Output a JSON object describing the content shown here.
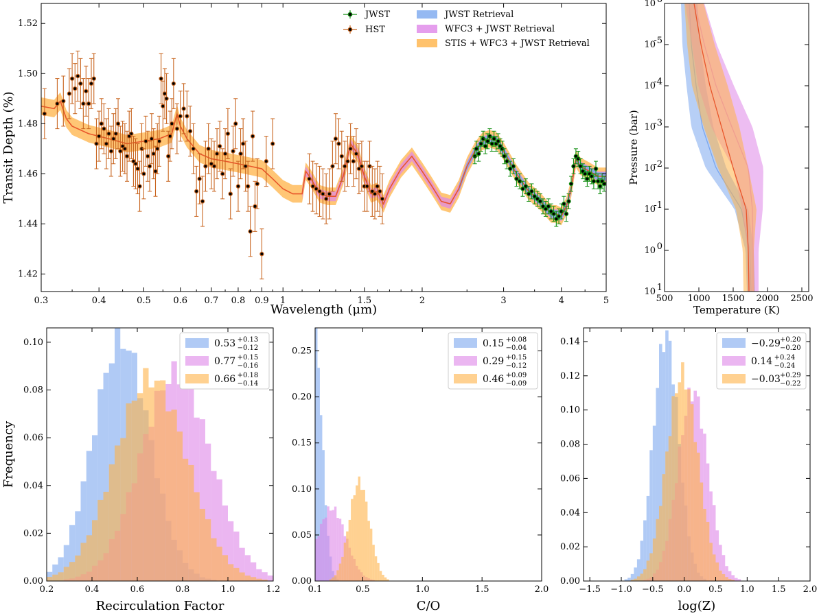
{
  "colors": {
    "jwst_ret": "#7ba7ef",
    "wfc3_ret": "#de86e8",
    "stis_ret": "#ffb347",
    "model_line": "#e8552a",
    "jwst_pts": "#138f13",
    "hst_pts": "#c8641e"
  },
  "chart_data": [
    {
      "type": "line",
      "name": "spectrum",
      "xlabel": "Wavelength (μm)",
      "ylabel": "Transit Depth (%)",
      "xscale": "log",
      "xlim": [
        0.3,
        5.0
      ],
      "ylim": [
        1.413,
        1.528
      ],
      "xticks": [
        0.3,
        0.4,
        0.5,
        0.6,
        0.7,
        0.8,
        0.9,
        1,
        1.5,
        2,
        3,
        4,
        5
      ],
      "xtick_labels": [
        "0.3",
        "0.4",
        "0.5",
        "0.6",
        "0.7",
        "0.8",
        "0.9",
        "1",
        "1.5",
        "2",
        "3",
        "4",
        "5"
      ],
      "yticks": [
        1.42,
        1.44,
        1.46,
        1.48,
        1.5,
        1.52
      ],
      "ytick_labels": [
        "1.42",
        "1.44",
        "1.46",
        "1.48",
        "1.50",
        "1.52"
      ],
      "legend": {
        "points": [
          {
            "label": "JWST",
            "color_key": "jwst_pts"
          },
          {
            "label": "HST",
            "color_key": "hst_pts"
          }
        ],
        "bands": [
          {
            "label": "JWST Retrieval",
            "color_key": "jwst_ret"
          },
          {
            "label": "WFC3 + JWST Retrieval",
            "color_key": "wfc3_ret"
          },
          {
            "label": "STIS + WFC3 + JWST Retrieval",
            "color_key": "stis_ret"
          }
        ]
      },
      "model_curve": {
        "x": [
          0.3,
          0.32,
          0.33,
          0.34,
          0.35,
          0.38,
          0.42,
          0.46,
          0.5,
          0.54,
          0.575,
          0.59,
          0.6,
          0.62,
          0.66,
          0.7,
          0.75,
          0.8,
          0.85,
          0.9,
          0.95,
          1.0,
          1.05,
          1.1,
          1.12,
          1.15,
          1.2,
          1.25,
          1.3,
          1.35,
          1.4,
          1.45,
          1.5,
          1.55,
          1.6,
          1.65,
          1.7,
          1.8,
          1.9,
          2.0,
          2.1,
          2.2,
          2.3,
          2.4,
          2.5,
          2.6,
          2.7,
          2.8,
          2.9,
          3.0,
          3.2,
          3.4,
          3.6,
          3.8,
          3.9,
          4.0,
          4.1,
          4.2,
          4.3,
          4.4,
          4.6,
          4.8,
          5.0
        ],
        "y": [
          1.487,
          1.486,
          1.489,
          1.482,
          1.479,
          1.476,
          1.474,
          1.472,
          1.473,
          1.474,
          1.476,
          1.484,
          1.479,
          1.474,
          1.468,
          1.466,
          1.465,
          1.464,
          1.463,
          1.462,
          1.458,
          1.454,
          1.452,
          1.452,
          1.461,
          1.458,
          1.452,
          1.451,
          1.451,
          1.459,
          1.472,
          1.468,
          1.459,
          1.452,
          1.453,
          1.448,
          1.454,
          1.462,
          1.467,
          1.461,
          1.455,
          1.449,
          1.448,
          1.454,
          1.463,
          1.469,
          1.473,
          1.474,
          1.473,
          1.469,
          1.46,
          1.453,
          1.449,
          1.444,
          1.444,
          1.443,
          1.447,
          1.454,
          1.466,
          1.463,
          1.461,
          1.459,
          1.459
        ],
        "band_halfwidth": 0.0035
      },
      "jwst_points": {
        "x": [
          2.6,
          2.62,
          2.65,
          2.68,
          2.71,
          2.74,
          2.77,
          2.8,
          2.83,
          2.86,
          2.89,
          2.92,
          2.95,
          2.98,
          3.01,
          3.05,
          3.1,
          3.15,
          3.2,
          3.25,
          3.3,
          3.35,
          3.4,
          3.45,
          3.5,
          3.55,
          3.6,
          3.65,
          3.7,
          3.75,
          3.8,
          3.85,
          3.9,
          3.95,
          4.0,
          4.05,
          4.1,
          4.15,
          4.2,
          4.25,
          4.3,
          4.35,
          4.4,
          4.45,
          4.5,
          4.55,
          4.6,
          4.65,
          4.7,
          4.75,
          4.8,
          4.85,
          4.9,
          4.95
        ],
        "y": [
          1.467,
          1.47,
          1.468,
          1.472,
          1.474,
          1.471,
          1.473,
          1.475,
          1.472,
          1.474,
          1.472,
          1.473,
          1.471,
          1.47,
          1.467,
          1.465,
          1.462,
          1.463,
          1.458,
          1.457,
          1.454,
          1.455,
          1.452,
          1.453,
          1.451,
          1.45,
          1.449,
          1.447,
          1.446,
          1.447,
          1.445,
          1.444,
          1.442,
          1.443,
          1.445,
          1.448,
          1.444,
          1.449,
          1.456,
          1.463,
          1.467,
          1.466,
          1.463,
          1.461,
          1.46,
          1.458,
          1.46,
          1.459,
          1.457,
          1.462,
          1.457,
          1.455,
          1.457,
          1.456
        ],
        "yerr": 0.003
      },
      "hst_points": {
        "x": [
          0.305,
          0.325,
          0.335,
          0.345,
          0.35,
          0.355,
          0.36,
          0.365,
          0.37,
          0.375,
          0.38,
          0.385,
          0.39,
          0.395,
          0.4,
          0.405,
          0.41,
          0.415,
          0.42,
          0.425,
          0.43,
          0.435,
          0.44,
          0.445,
          0.45,
          0.455,
          0.46,
          0.465,
          0.47,
          0.475,
          0.48,
          0.485,
          0.49,
          0.495,
          0.5,
          0.505,
          0.51,
          0.515,
          0.52,
          0.525,
          0.53,
          0.535,
          0.54,
          0.545,
          0.55,
          0.555,
          0.56,
          0.565,
          0.57,
          0.575,
          0.58,
          0.59,
          0.6,
          0.61,
          0.62,
          0.63,
          0.64,
          0.65,
          0.66,
          0.67,
          0.68,
          0.69,
          0.7,
          0.71,
          0.72,
          0.73,
          0.74,
          0.75,
          0.76,
          0.77,
          0.78,
          0.79,
          0.8,
          0.81,
          0.82,
          0.83,
          0.84,
          0.85,
          0.86,
          0.87,
          0.88,
          0.9,
          0.92,
          0.95,
          1.14,
          1.16,
          1.18,
          1.2,
          1.22,
          1.24,
          1.26,
          1.28,
          1.3,
          1.32,
          1.34,
          1.36,
          1.38,
          1.4,
          1.42,
          1.44,
          1.46,
          1.48,
          1.5,
          1.52,
          1.54,
          1.56,
          1.58,
          1.6,
          1.62,
          1.64
        ],
        "y": [
          1.484,
          1.488,
          1.489,
          1.492,
          1.498,
          1.494,
          1.499,
          1.496,
          1.488,
          1.493,
          1.488,
          1.496,
          1.498,
          1.472,
          1.475,
          1.48,
          1.478,
          1.472,
          1.476,
          1.469,
          1.474,
          1.476,
          1.48,
          1.469,
          1.471,
          1.47,
          1.467,
          1.475,
          1.476,
          1.465,
          1.464,
          1.462,
          1.455,
          1.47,
          1.46,
          1.473,
          1.467,
          1.463,
          1.474,
          1.468,
          1.461,
          1.47,
          1.473,
          1.498,
          1.487,
          1.492,
          1.49,
          1.467,
          1.475,
          1.48,
          1.496,
          1.478,
          1.483,
          1.486,
          1.483,
          1.477,
          1.47,
          1.453,
          1.458,
          1.449,
          1.463,
          1.47,
          1.464,
          1.463,
          1.468,
          1.471,
          1.46,
          1.468,
          1.476,
          1.452,
          1.469,
          1.48,
          1.455,
          1.468,
          1.472,
          1.463,
          1.455,
          1.437,
          1.475,
          1.447,
          1.456,
          1.428,
          1.465,
          1.472,
          1.458,
          1.455,
          1.454,
          1.453,
          1.452,
          1.45,
          1.452,
          1.463,
          1.474,
          1.472,
          1.467,
          1.463,
          1.465,
          1.47,
          1.465,
          1.468,
          1.462,
          1.463,
          1.455,
          1.455,
          1.463,
          1.453,
          1.452,
          1.455,
          1.453,
          1.45
        ],
        "yerr": 0.01
      }
    },
    {
      "type": "line",
      "name": "pt_profile",
      "xlabel": "Temperature (K)",
      "ylabel": "Pressure (bar)",
      "yscale": "log",
      "xlim": [
        500,
        2600
      ],
      "ylim": [
        1e-06,
        10
      ],
      "xticks": [
        500,
        1000,
        1500,
        2000,
        2500
      ],
      "xtick_labels": [
        "500",
        "1000",
        "1500",
        "2000",
        "2500"
      ],
      "ytick_exps": [
        "-6",
        "-5",
        "-4",
        "-3",
        "-2",
        "-1",
        "0",
        "1"
      ],
      "profiles": [
        {
          "color_key": "jwst_ret",
          "logp": [
            -6,
            -5,
            -4,
            -3,
            -2,
            -1,
            0,
            1
          ],
          "T": [
            860,
            890,
            960,
            1050,
            1250,
            1620,
            1740,
            1760
          ],
          "w": [
            120,
            130,
            140,
            160,
            150,
            100,
            60,
            60
          ]
        },
        {
          "color_key": "wfc3_ret",
          "logp": [
            -6,
            -5,
            -4,
            -3,
            -2,
            -1,
            0,
            1
          ],
          "T": [
            940,
            1080,
            1250,
            1480,
            1720,
            1780,
            1790,
            1790
          ],
          "w": [
            140,
            180,
            260,
            300,
            220,
            150,
            80,
            80
          ]
        },
        {
          "color_key": "stis_ret",
          "logp": [
            -6,
            -5,
            -4,
            -3,
            -2,
            -1,
            0,
            1
          ],
          "T": [
            930,
            1030,
            1160,
            1330,
            1500,
            1690,
            1720,
            1730
          ],
          "w": [
            140,
            200,
            260,
            260,
            220,
            150,
            80,
            80
          ]
        }
      ]
    },
    {
      "type": "bar",
      "name": "hist_recirc",
      "xlabel": "Recirculation Factor",
      "ylabel": "Frequency",
      "xlim": [
        0.2,
        1.2
      ],
      "ylim": [
        0,
        0.106
      ],
      "xticks": [
        0.2,
        0.4,
        0.6,
        0.8,
        1.0,
        1.2
      ],
      "xtick_labels": [
        "0.2",
        "0.4",
        "0.6",
        "0.8",
        "1.0",
        "1.2"
      ],
      "yticks": [
        0,
        0.02,
        0.04,
        0.06,
        0.08,
        0.1
      ],
      "ytick_labels": [
        "0.00",
        "0.02",
        "0.04",
        "0.06",
        "0.08",
        "0.10"
      ],
      "series": [
        {
          "color_key": "jwst_ret",
          "label_main": "0.53",
          "label_sup": "+0.13",
          "label_sub": "−0.12",
          "mu": 0.53,
          "sigma": 0.125,
          "peak": 0.101
        },
        {
          "color_key": "wfc3_ret",
          "label_main": "0.77",
          "label_sup": "+0.15",
          "label_sub": "−0.16",
          "mu": 0.77,
          "sigma": 0.155,
          "peak": 0.087
        },
        {
          "color_key": "stis_ret",
          "label_main": "0.66",
          "label_sup": "+0.18",
          "label_sub": "−0.14",
          "mu": 0.66,
          "sigma": 0.16,
          "peak": 0.085
        }
      ],
      "bins": [
        0.2,
        1.2,
        40
      ]
    },
    {
      "type": "bar",
      "name": "hist_co",
      "xlabel": "C/O",
      "ylabel": "",
      "xlim": [
        0.1,
        2.0
      ],
      "ylim": [
        0,
        0.275
      ],
      "xticks": [
        0.1,
        0.5,
        1.0,
        1.5,
        2.0
      ],
      "xtick_labels": [
        "0.1",
        "0.5",
        "1.0",
        "1.5",
        "2.0"
      ],
      "yticks": [
        0,
        0.05,
        0.1,
        0.15,
        0.2,
        0.25
      ],
      "ytick_labels": [
        "0.00",
        "0.05",
        "0.10",
        "0.15",
        "0.20",
        "0.25"
      ],
      "series": [
        {
          "color_key": "jwst_ret",
          "label_main": "0.15",
          "label_sup": "+0.08",
          "label_sub": "−0.04",
          "mu": 0.1,
          "sigma": 0.06,
          "peak": 0.265,
          "one_sided": true
        },
        {
          "color_key": "wfc3_ret",
          "label_main": "0.29",
          "label_sup": "+0.15",
          "label_sub": "−0.12",
          "mu": 0.24,
          "sigma": 0.12,
          "peak": 0.079
        },
        {
          "color_key": "stis_ret",
          "label_main": "0.46",
          "label_sup": "+0.09",
          "label_sub": "−0.09",
          "mu": 0.47,
          "sigma": 0.085,
          "peak": 0.108
        }
      ],
      "bins": [
        0.1,
        2.0,
        95
      ]
    },
    {
      "type": "bar",
      "name": "hist_logz",
      "xlabel": "log(Z)",
      "ylabel": "",
      "xlim": [
        -1.6,
        2.0
      ],
      "ylim": [
        0,
        0.148
      ],
      "xticks": [
        -1.5,
        -1.0,
        -0.5,
        0.0,
        0.5,
        1.0,
        1.5,
        2.0
      ],
      "xtick_labels": [
        "−1.5",
        "−1.0",
        "−0.5",
        "0.0",
        "0.5",
        "1.0",
        "1.5",
        "2.0"
      ],
      "yticks": [
        0,
        0.02,
        0.04,
        0.06,
        0.08,
        0.1,
        0.12,
        0.14
      ],
      "ytick_labels": [
        "0.00",
        "0.02",
        "0.04",
        "0.06",
        "0.08",
        "0.10",
        "0.12",
        "0.14"
      ],
      "series": [
        {
          "color_key": "jwst_ret",
          "label_main": "−0.29",
          "label_sup": "+0.20",
          "label_sub": "−0.20",
          "mu": -0.29,
          "sigma": 0.2,
          "peak": 0.144
        },
        {
          "color_key": "wfc3_ret",
          "label_main": "0.14",
          "label_sup": "+0.24",
          "label_sub": "−0.24",
          "mu": 0.14,
          "sigma": 0.24,
          "peak": 0.111
        },
        {
          "color_key": "stis_ret",
          "label_main": "−0.03",
          "label_sup": "+0.29",
          "label_sub": "−0.22",
          "mu": -0.03,
          "sigma": 0.25,
          "peak": 0.121
        }
      ],
      "bins": [
        -1.6,
        2.0,
        72
      ]
    }
  ]
}
